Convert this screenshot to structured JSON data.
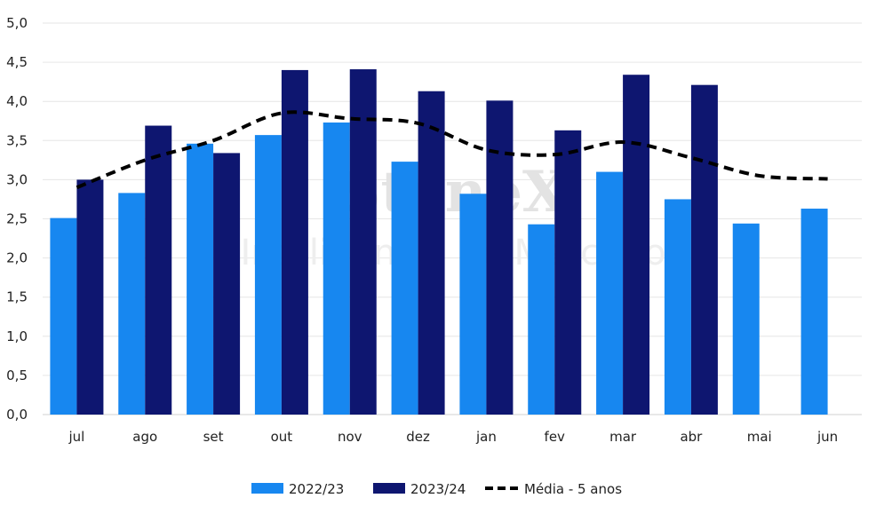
{
  "chart_data": {
    "type": "bar",
    "categories": [
      "jul",
      "ago",
      "set",
      "out",
      "nov",
      "dez",
      "jan",
      "fev",
      "mar",
      "abr",
      "mai",
      "jun"
    ],
    "series": [
      {
        "name": "2022/23",
        "type": "bar",
        "color": "#1787F0",
        "values": [
          2.51,
          2.83,
          3.46,
          3.57,
          3.73,
          3.23,
          2.82,
          2.43,
          3.1,
          2.75,
          2.44,
          2.63
        ]
      },
      {
        "name": "2023/24",
        "type": "bar",
        "color": "#0E1670",
        "values": [
          3.0,
          3.69,
          3.34,
          4.4,
          4.41,
          4.13,
          4.01,
          3.63,
          4.34,
          4.21,
          null,
          null
        ]
      },
      {
        "name": "Média - 5 anos",
        "type": "line",
        "style": "dashed",
        "color": "#000000",
        "values": [
          2.9,
          3.25,
          3.5,
          3.85,
          3.78,
          3.72,
          3.38,
          3.32,
          3.48,
          3.28,
          3.05,
          3.01
        ]
      }
    ],
    "y_ticks": [
      "0,0",
      "0,5",
      "1,0",
      "1,5",
      "2,0",
      "2,5",
      "3,0",
      "3,5",
      "4,0",
      "4,5",
      "5,0"
    ],
    "ylim": [
      0,
      5
    ],
    "grid": true,
    "legend_position": "bottom-center"
  },
  "watermark": {
    "brand": "StoneX",
    "tagline": "Inteligência de Mercado"
  }
}
